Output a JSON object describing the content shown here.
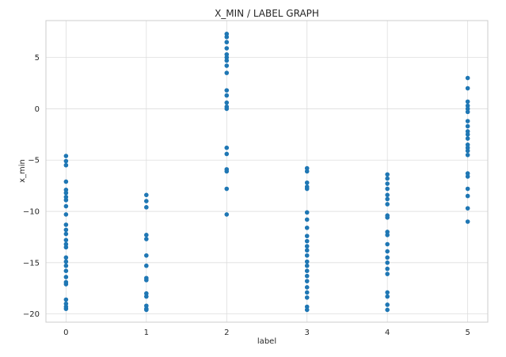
{
  "chart_data": {
    "type": "scatter",
    "title": "X_MIN / LABEL GRAPH",
    "xlabel": "label",
    "ylabel": "x_min",
    "xlim": [
      -0.25,
      5.25
    ],
    "ylim": [
      -20.8,
      8.6
    ],
    "xticks": [
      0,
      1,
      2,
      3,
      4,
      5
    ],
    "yticks": [
      -20,
      -15,
      -10,
      -5,
      0,
      5
    ],
    "grid": true,
    "marker_color": "#1f77b4",
    "series": [
      {
        "points": [
          [
            0,
            -4.6
          ],
          [
            0,
            -5.1
          ],
          [
            0,
            -5.5
          ],
          [
            0,
            -7.1
          ],
          [
            0,
            -7.9
          ],
          [
            0,
            -8.2
          ],
          [
            0,
            -8.6
          ],
          [
            0,
            -8.9
          ],
          [
            0,
            -9.5
          ],
          [
            0,
            -10.3
          ],
          [
            0,
            -11.3
          ],
          [
            0,
            -11.8
          ],
          [
            0,
            -12.2
          ],
          [
            0,
            -12.8
          ],
          [
            0,
            -13.2
          ],
          [
            0,
            -13.5
          ],
          [
            0,
            -14.5
          ],
          [
            0,
            -14.9
          ],
          [
            0,
            -15.3
          ],
          [
            0,
            -15.8
          ],
          [
            0,
            -16.4
          ],
          [
            0,
            -16.9
          ],
          [
            0,
            -17.1
          ],
          [
            0,
            -18.6
          ],
          [
            0,
            -19.0
          ],
          [
            0,
            -19.3
          ],
          [
            0,
            -19.5
          ],
          [
            1,
            -8.4
          ],
          [
            1,
            -9.0
          ],
          [
            1,
            -9.6
          ],
          [
            1,
            -12.3
          ],
          [
            1,
            -12.7
          ],
          [
            1,
            -14.3
          ],
          [
            1,
            -15.3
          ],
          [
            1,
            -16.5
          ],
          [
            1,
            -16.7
          ],
          [
            1,
            -18.0
          ],
          [
            1,
            -18.3
          ],
          [
            1,
            -19.2
          ],
          [
            1,
            -19.5
          ],
          [
            1,
            -19.6
          ],
          [
            2,
            7.3
          ],
          [
            2,
            7.0
          ],
          [
            2,
            6.5
          ],
          [
            2,
            5.9
          ],
          [
            2,
            5.3
          ],
          [
            2,
            5.0
          ],
          [
            2,
            4.7
          ],
          [
            2,
            4.2
          ],
          [
            2,
            3.5
          ],
          [
            2,
            1.8
          ],
          [
            2,
            1.3
          ],
          [
            2,
            0.6
          ],
          [
            2,
            0.2
          ],
          [
            2,
            0.0
          ],
          [
            2,
            -3.8
          ],
          [
            2,
            -4.4
          ],
          [
            2,
            -5.9
          ],
          [
            2,
            -6.1
          ],
          [
            2,
            -7.8
          ],
          [
            2,
            -10.3
          ],
          [
            3,
            -5.8
          ],
          [
            3,
            -6.1
          ],
          [
            3,
            -7.2
          ],
          [
            3,
            -7.6
          ],
          [
            3,
            -7.8
          ],
          [
            3,
            -10.1
          ],
          [
            3,
            -10.8
          ],
          [
            3,
            -11.6
          ],
          [
            3,
            -12.4
          ],
          [
            3,
            -12.9
          ],
          [
            3,
            -13.4
          ],
          [
            3,
            -13.8
          ],
          [
            3,
            -14.3
          ],
          [
            3,
            -14.9
          ],
          [
            3,
            -15.3
          ],
          [
            3,
            -15.8
          ],
          [
            3,
            -16.3
          ],
          [
            3,
            -16.8
          ],
          [
            3,
            -17.4
          ],
          [
            3,
            -17.9
          ],
          [
            3,
            -18.4
          ],
          [
            3,
            -19.3
          ],
          [
            3,
            -19.6
          ],
          [
            4,
            -6.4
          ],
          [
            4,
            -6.8
          ],
          [
            4,
            -7.3
          ],
          [
            4,
            -7.8
          ],
          [
            4,
            -8.4
          ],
          [
            4,
            -8.8
          ],
          [
            4,
            -9.3
          ],
          [
            4,
            -10.4
          ],
          [
            4,
            -10.6
          ],
          [
            4,
            -12.0
          ],
          [
            4,
            -12.3
          ],
          [
            4,
            -13.2
          ],
          [
            4,
            -13.9
          ],
          [
            4,
            -14.5
          ],
          [
            4,
            -15.0
          ],
          [
            4,
            -15.6
          ],
          [
            4,
            -16.1
          ],
          [
            4,
            -17.9
          ],
          [
            4,
            -18.3
          ],
          [
            4,
            -19.1
          ],
          [
            4,
            -19.6
          ],
          [
            5,
            3.0
          ],
          [
            5,
            2.0
          ],
          [
            5,
            0.7
          ],
          [
            5,
            0.3
          ],
          [
            5,
            0.0
          ],
          [
            5,
            -0.3
          ],
          [
            5,
            -1.2
          ],
          [
            5,
            -1.7
          ],
          [
            5,
            -2.2
          ],
          [
            5,
            -2.5
          ],
          [
            5,
            -2.9
          ],
          [
            5,
            -3.5
          ],
          [
            5,
            -3.8
          ],
          [
            5,
            -4.1
          ],
          [
            5,
            -4.5
          ],
          [
            5,
            -6.3
          ],
          [
            5,
            -6.6
          ],
          [
            5,
            -7.8
          ],
          [
            5,
            -8.5
          ],
          [
            5,
            -9.7
          ],
          [
            5,
            -11.0
          ]
        ]
      }
    ]
  }
}
